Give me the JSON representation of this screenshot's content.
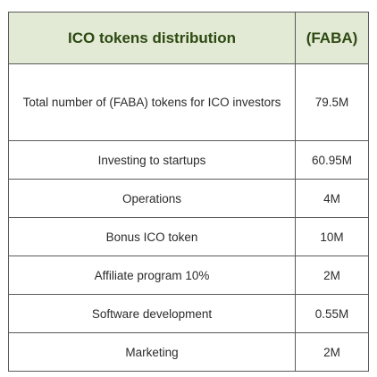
{
  "table": {
    "header": {
      "label": "ICO tokens distribution",
      "value": "(FABA)"
    },
    "rows": [
      {
        "label": "Total number of (FABA) tokens for ICO investors",
        "value": "79.5M"
      },
      {
        "label": "Investing to startups",
        "value": "60.95M"
      },
      {
        "label": "Operations",
        "value": "4M"
      },
      {
        "label": "Bonus ICO token",
        "value": "10M"
      },
      {
        "label": "Affiliate program 10%",
        "value": "2M"
      },
      {
        "label": "Software development",
        "value": "0.55M"
      },
      {
        "label": "Marketing",
        "value": "2M"
      }
    ]
  },
  "colors": {
    "header_background": "#e2e9d4",
    "header_text": "#2d4a12",
    "border": "#5a5a5a"
  }
}
